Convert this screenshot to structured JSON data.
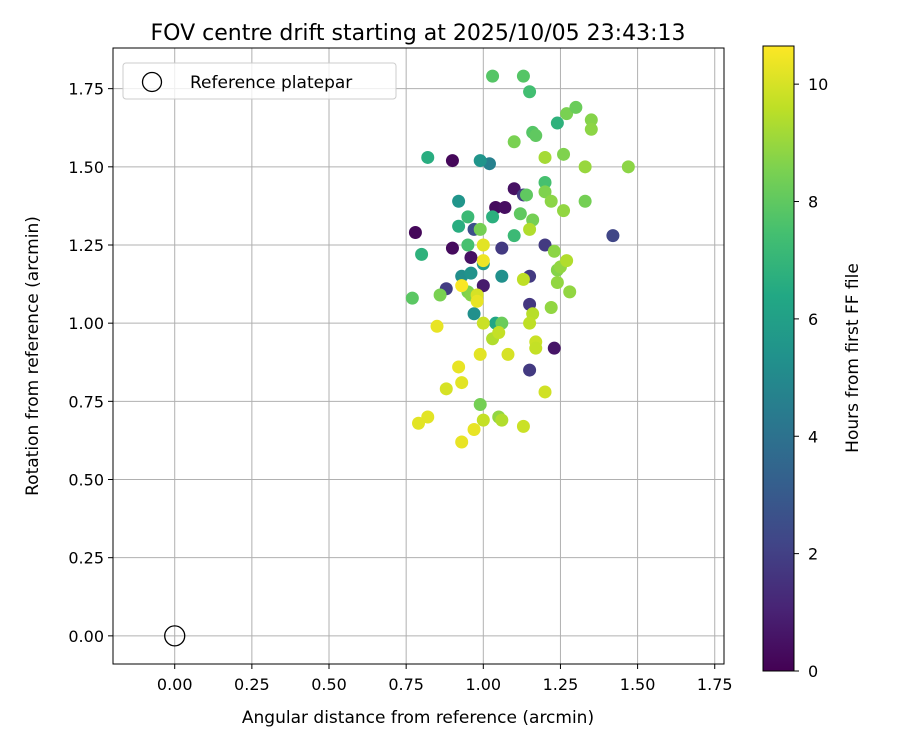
{
  "chart_data": {
    "type": "scatter",
    "title": "FOV centre drift starting at 2025/10/05 23:43:13",
    "xlabel": "Angular distance from reference (arcmin)",
    "ylabel": "Rotation from reference (arcmin)",
    "xlim": [
      -0.2,
      1.78
    ],
    "ylim": [
      -0.09,
      1.88
    ],
    "xticks": [
      "0.00",
      "0.25",
      "0.50",
      "0.75",
      "1.00",
      "1.25",
      "1.50",
      "1.75"
    ],
    "xtick_values": [
      0,
      0.25,
      0.5,
      0.75,
      1.0,
      1.25,
      1.5,
      1.75
    ],
    "yticks": [
      "0.00",
      "0.25",
      "0.50",
      "0.75",
      "1.00",
      "1.25",
      "1.50",
      "1.75"
    ],
    "ytick_values": [
      0,
      0.25,
      0.5,
      0.75,
      1.0,
      1.25,
      1.5,
      1.75
    ],
    "grid": true,
    "legend": {
      "label": "Reference platepar",
      "position": "upper-left"
    },
    "reference_point": {
      "x": 0.0,
      "y": 0.0
    },
    "colorbar": {
      "label": "Hours from first FF file",
      "min": 0,
      "max": 10.65,
      "ticks": [
        "0",
        "2",
        "4",
        "6",
        "8",
        "10"
      ],
      "tick_values": [
        0,
        2,
        4,
        6,
        8,
        10
      ],
      "colormap": "viridis"
    },
    "points": [
      {
        "x": 0.78,
        "y": 1.29,
        "h": 0.2
      },
      {
        "x": 0.9,
        "y": 1.52,
        "h": 0.2
      },
      {
        "x": 0.9,
        "y": 1.24,
        "h": 0.3
      },
      {
        "x": 0.96,
        "y": 1.21,
        "h": 0.5
      },
      {
        "x": 1.04,
        "y": 1.37,
        "h": 0.3
      },
      {
        "x": 1.07,
        "y": 1.37,
        "h": 0.4
      },
      {
        "x": 1.1,
        "y": 1.43,
        "h": 0.5
      },
      {
        "x": 1.0,
        "y": 1.12,
        "h": 0.8
      },
      {
        "x": 1.23,
        "y": 0.92,
        "h": 0.6
      },
      {
        "x": 1.06,
        "y": 1.24,
        "h": 1.8
      },
      {
        "x": 1.13,
        "y": 1.41,
        "h": 1.9
      },
      {
        "x": 1.2,
        "y": 1.25,
        "h": 1.8
      },
      {
        "x": 1.42,
        "y": 1.28,
        "h": 2.2
      },
      {
        "x": 0.88,
        "y": 1.11,
        "h": 1.9
      },
      {
        "x": 1.15,
        "y": 1.15,
        "h": 1.8
      },
      {
        "x": 1.15,
        "y": 1.06,
        "h": 1.7
      },
      {
        "x": 1.15,
        "y": 0.85,
        "h": 1.8
      },
      {
        "x": 0.97,
        "y": 1.3,
        "h": 2.6
      },
      {
        "x": 1.02,
        "y": 1.51,
        "h": 4.6
      },
      {
        "x": 0.99,
        "y": 1.52,
        "h": 5.5
      },
      {
        "x": 0.92,
        "y": 1.39,
        "h": 5.5
      },
      {
        "x": 0.93,
        "y": 1.15,
        "h": 5.2
      },
      {
        "x": 0.96,
        "y": 1.16,
        "h": 5.4
      },
      {
        "x": 1.06,
        "y": 1.15,
        "h": 5.3
      },
      {
        "x": 0.97,
        "y": 1.03,
        "h": 5.3
      },
      {
        "x": 1.0,
        "y": 1.19,
        "h": 5.9
      },
      {
        "x": 1.04,
        "y": 1.0,
        "h": 6.3
      },
      {
        "x": 0.82,
        "y": 1.53,
        "h": 6.6
      },
      {
        "x": 0.8,
        "y": 1.22,
        "h": 6.8
      },
      {
        "x": 0.92,
        "y": 1.31,
        "h": 6.6
      },
      {
        "x": 0.95,
        "y": 1.34,
        "h": 7.2
      },
      {
        "x": 0.95,
        "y": 1.25,
        "h": 7.5
      },
      {
        "x": 1.03,
        "y": 1.34,
        "h": 6.7
      },
      {
        "x": 1.1,
        "y": 1.28,
        "h": 7.2
      },
      {
        "x": 1.2,
        "y": 1.45,
        "h": 7.5
      },
      {
        "x": 1.24,
        "y": 1.64,
        "h": 6.8
      },
      {
        "x": 1.15,
        "y": 1.74,
        "h": 7.4
      },
      {
        "x": 1.03,
        "y": 1.79,
        "h": 7.8
      },
      {
        "x": 1.13,
        "y": 1.79,
        "h": 7.8
      },
      {
        "x": 1.16,
        "y": 1.61,
        "h": 7.8
      },
      {
        "x": 1.17,
        "y": 1.6,
        "h": 8.0
      },
      {
        "x": 1.1,
        "y": 1.58,
        "h": 8.5
      },
      {
        "x": 1.2,
        "y": 1.53,
        "h": 9.2
      },
      {
        "x": 1.26,
        "y": 1.54,
        "h": 8.6
      },
      {
        "x": 1.27,
        "y": 1.67,
        "h": 8.5
      },
      {
        "x": 1.3,
        "y": 1.69,
        "h": 8.2
      },
      {
        "x": 1.35,
        "y": 1.65,
        "h": 8.7
      },
      {
        "x": 1.35,
        "y": 1.62,
        "h": 8.8
      },
      {
        "x": 1.33,
        "y": 1.5,
        "h": 9.0
      },
      {
        "x": 1.47,
        "y": 1.5,
        "h": 8.8
      },
      {
        "x": 1.33,
        "y": 1.39,
        "h": 8.4
      },
      {
        "x": 1.2,
        "y": 1.42,
        "h": 8.6
      },
      {
        "x": 1.22,
        "y": 1.39,
        "h": 8.8
      },
      {
        "x": 1.26,
        "y": 1.36,
        "h": 8.9
      },
      {
        "x": 1.14,
        "y": 1.41,
        "h": 8.0
      },
      {
        "x": 1.12,
        "y": 1.35,
        "h": 8.0
      },
      {
        "x": 1.16,
        "y": 1.33,
        "h": 8.4
      },
      {
        "x": 1.15,
        "y": 1.3,
        "h": 9.4
      },
      {
        "x": 0.77,
        "y": 1.08,
        "h": 7.9
      },
      {
        "x": 0.86,
        "y": 1.09,
        "h": 8.5
      },
      {
        "x": 0.95,
        "y": 1.1,
        "h": 8.5
      },
      {
        "x": 0.96,
        "y": 1.09,
        "h": 8.7
      },
      {
        "x": 0.99,
        "y": 1.3,
        "h": 8.4
      },
      {
        "x": 1.23,
        "y": 1.23,
        "h": 8.8
      },
      {
        "x": 1.24,
        "y": 1.17,
        "h": 8.7
      },
      {
        "x": 1.25,
        "y": 1.18,
        "h": 8.9
      },
      {
        "x": 1.27,
        "y": 1.2,
        "h": 9.4
      },
      {
        "x": 1.24,
        "y": 1.13,
        "h": 8.9
      },
      {
        "x": 1.28,
        "y": 1.1,
        "h": 8.9
      },
      {
        "x": 1.13,
        "y": 1.14,
        "h": 9.6
      },
      {
        "x": 1.22,
        "y": 1.05,
        "h": 8.9
      },
      {
        "x": 1.16,
        "y": 1.03,
        "h": 9.5
      },
      {
        "x": 1.15,
        "y": 1.0,
        "h": 9.6
      },
      {
        "x": 1.06,
        "y": 1.0,
        "h": 8.2
      },
      {
        "x": 1.03,
        "y": 0.95,
        "h": 9.4
      },
      {
        "x": 1.05,
        "y": 0.97,
        "h": 9.7
      },
      {
        "x": 1.17,
        "y": 0.94,
        "h": 9.8
      },
      {
        "x": 1.17,
        "y": 0.92,
        "h": 9.7
      },
      {
        "x": 0.99,
        "y": 0.74,
        "h": 8.4
      },
      {
        "x": 1.05,
        "y": 0.7,
        "h": 8.9
      },
      {
        "x": 1.06,
        "y": 0.69,
        "h": 9.4
      },
      {
        "x": 1.0,
        "y": 0.69,
        "h": 9.7
      },
      {
        "x": 1.13,
        "y": 0.67,
        "h": 9.8
      },
      {
        "x": 1.2,
        "y": 0.78,
        "h": 9.9
      },
      {
        "x": 0.98,
        "y": 1.09,
        "h": 10.0
      },
      {
        "x": 0.98,
        "y": 1.07,
        "h": 10.3
      },
      {
        "x": 1.0,
        "y": 1.0,
        "h": 9.8
      },
      {
        "x": 1.0,
        "y": 1.25,
        "h": 10.2
      },
      {
        "x": 1.0,
        "y": 1.2,
        "h": 10.4
      },
      {
        "x": 0.93,
        "y": 1.12,
        "h": 10.6
      },
      {
        "x": 0.85,
        "y": 0.99,
        "h": 10.3
      },
      {
        "x": 0.99,
        "y": 0.9,
        "h": 10.2
      },
      {
        "x": 1.08,
        "y": 0.9,
        "h": 10.0
      },
      {
        "x": 0.92,
        "y": 0.86,
        "h": 10.3
      },
      {
        "x": 0.93,
        "y": 0.81,
        "h": 10.2
      },
      {
        "x": 0.88,
        "y": 0.79,
        "h": 10.0
      },
      {
        "x": 0.82,
        "y": 0.7,
        "h": 10.2
      },
      {
        "x": 0.79,
        "y": 0.68,
        "h": 10.2
      },
      {
        "x": 0.97,
        "y": 0.66,
        "h": 10.3
      },
      {
        "x": 0.93,
        "y": 0.62,
        "h": 10.3
      }
    ]
  }
}
